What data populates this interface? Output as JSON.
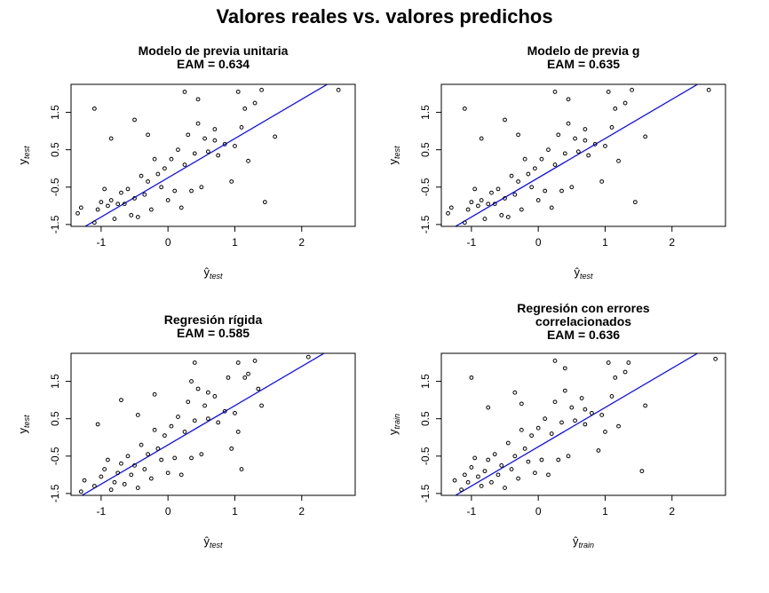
{
  "title": "Valores reales vs. valores predichos",
  "line_color": "#0000ff",
  "point_color": "#000000",
  "chart_data": [
    {
      "type": "scatter",
      "title_lines": [
        "Modelo de previa unitaria",
        "EAM =  0.634"
      ],
      "xlabel": {
        "base": "ŷ",
        "sub": "test"
      },
      "ylabel": {
        "base": "y",
        "sub": "test"
      },
      "xlim": [
        -1.45,
        2.8
      ],
      "ylim": [
        -1.55,
        2.25
      ],
      "xticks": [
        -1,
        0,
        1,
        2
      ],
      "yticks": [
        -1.5,
        -0.5,
        0.5,
        1.5
      ],
      "ytick_labels": [
        "-1.5",
        "-0.5",
        "0.5",
        "1.5"
      ],
      "line": {
        "intercept": -0.25,
        "slope": 1.05
      },
      "points": [
        [
          -1.35,
          -1.2
        ],
        [
          -1.3,
          -1.05
        ],
        [
          -1.1,
          -1.45
        ],
        [
          -1.05,
          -1.1
        ],
        [
          -1.0,
          -0.9
        ],
        [
          -0.95,
          -0.55
        ],
        [
          -0.9,
          -1.0
        ],
        [
          -0.85,
          -0.85
        ],
        [
          -0.8,
          -1.35
        ],
        [
          -0.75,
          -0.95
        ],
        [
          -0.7,
          -0.65
        ],
        [
          -0.65,
          -0.95
        ],
        [
          -0.6,
          -0.55
        ],
        [
          -0.55,
          -1.25
        ],
        [
          -0.5,
          -0.8
        ],
        [
          -0.45,
          -1.3
        ],
        [
          -0.4,
          -0.2
        ],
        [
          -0.35,
          -0.7
        ],
        [
          -0.3,
          -0.35
        ],
        [
          -0.25,
          -1.1
        ],
        [
          -0.2,
          0.25
        ],
        [
          -0.15,
          -0.15
        ],
        [
          -0.1,
          -0.5
        ],
        [
          -0.05,
          0.0
        ],
        [
          0.0,
          -0.85
        ],
        [
          0.05,
          0.25
        ],
        [
          0.1,
          -0.6
        ],
        [
          0.15,
          0.5
        ],
        [
          0.2,
          -1.05
        ],
        [
          0.25,
          0.1
        ],
        [
          0.3,
          0.9
        ],
        [
          0.35,
          -0.6
        ],
        [
          0.4,
          0.4
        ],
        [
          0.45,
          1.2
        ],
        [
          0.5,
          -0.5
        ],
        [
          0.55,
          0.8
        ],
        [
          0.6,
          0.45
        ],
        [
          0.7,
          1.05
        ],
        [
          0.75,
          0.35
        ],
        [
          0.85,
          0.65
        ],
        [
          0.95,
          -0.35
        ],
        [
          1.0,
          0.6
        ],
        [
          1.1,
          1.1
        ],
        [
          1.2,
          0.2
        ],
        [
          1.3,
          1.75
        ],
        [
          1.45,
          -0.9
        ],
        [
          1.6,
          0.85
        ],
        [
          2.55,
          2.1
        ],
        [
          -1.1,
          1.6
        ],
        [
          -0.85,
          0.8
        ],
        [
          -0.5,
          1.3
        ],
        [
          -0.3,
          0.9
        ],
        [
          0.25,
          2.05
        ],
        [
          0.45,
          1.85
        ],
        [
          0.7,
          0.75
        ],
        [
          1.05,
          2.05
        ],
        [
          1.15,
          1.6
        ],
        [
          1.4,
          2.1
        ]
      ]
    },
    {
      "type": "scatter",
      "title_lines": [
        "Modelo de previa g",
        "EAM =  0.635"
      ],
      "xlabel": {
        "base": "ŷ",
        "sub": "test"
      },
      "ylabel": {
        "base": "y",
        "sub": "test"
      },
      "xlim": [
        -1.45,
        2.8
      ],
      "ylim": [
        -1.55,
        2.25
      ],
      "xticks": [
        -1,
        0,
        1,
        2
      ],
      "yticks": [
        -1.5,
        -0.5,
        0.5,
        1.5
      ],
      "ytick_labels": [
        "-1.5",
        "-0.5",
        "0.5",
        "1.5"
      ],
      "line": {
        "intercept": -0.25,
        "slope": 1.05
      },
      "points": [
        [
          -1.35,
          -1.2
        ],
        [
          -1.3,
          -1.05
        ],
        [
          -1.1,
          -1.45
        ],
        [
          -1.05,
          -1.1
        ],
        [
          -1.0,
          -0.9
        ],
        [
          -0.95,
          -0.55
        ],
        [
          -0.9,
          -1.0
        ],
        [
          -0.85,
          -0.85
        ],
        [
          -0.8,
          -1.35
        ],
        [
          -0.75,
          -0.95
        ],
        [
          -0.7,
          -0.65
        ],
        [
          -0.65,
          -0.95
        ],
        [
          -0.6,
          -0.55
        ],
        [
          -0.55,
          -1.25
        ],
        [
          -0.5,
          -0.8
        ],
        [
          -0.45,
          -1.3
        ],
        [
          -0.4,
          -0.2
        ],
        [
          -0.35,
          -0.7
        ],
        [
          -0.3,
          -0.35
        ],
        [
          -0.25,
          -1.1
        ],
        [
          -0.2,
          0.25
        ],
        [
          -0.15,
          -0.15
        ],
        [
          -0.1,
          -0.5
        ],
        [
          -0.05,
          0.0
        ],
        [
          0.0,
          -0.85
        ],
        [
          0.05,
          0.25
        ],
        [
          0.1,
          -0.6
        ],
        [
          0.15,
          0.5
        ],
        [
          0.2,
          -1.05
        ],
        [
          0.25,
          0.1
        ],
        [
          0.3,
          0.9
        ],
        [
          0.35,
          -0.6
        ],
        [
          0.4,
          0.4
        ],
        [
          0.45,
          1.2
        ],
        [
          0.5,
          -0.5
        ],
        [
          0.55,
          0.8
        ],
        [
          0.6,
          0.45
        ],
        [
          0.7,
          1.05
        ],
        [
          0.75,
          0.35
        ],
        [
          0.85,
          0.65
        ],
        [
          0.95,
          -0.35
        ],
        [
          1.0,
          0.6
        ],
        [
          1.1,
          1.1
        ],
        [
          1.2,
          0.2
        ],
        [
          1.3,
          1.75
        ],
        [
          1.45,
          -0.9
        ],
        [
          1.6,
          0.85
        ],
        [
          2.55,
          2.1
        ],
        [
          -1.1,
          1.6
        ],
        [
          -0.85,
          0.8
        ],
        [
          -0.5,
          1.3
        ],
        [
          -0.3,
          0.9
        ],
        [
          0.25,
          2.05
        ],
        [
          0.45,
          1.85
        ],
        [
          0.7,
          0.75
        ],
        [
          1.05,
          2.05
        ],
        [
          1.15,
          1.6
        ],
        [
          1.4,
          2.1
        ]
      ]
    },
    {
      "type": "scatter",
      "title_lines": [
        "Regresión rígida",
        "EAM =  0.585"
      ],
      "xlabel": {
        "base": "ŷ",
        "sub": "test"
      },
      "ylabel": {
        "base": "y",
        "sub": "test"
      },
      "xlim": [
        -1.45,
        2.8
      ],
      "ylim": [
        -1.55,
        2.25
      ],
      "xticks": [
        -1,
        0,
        1,
        2
      ],
      "yticks": [
        -1.5,
        -0.5,
        0.5,
        1.5
      ],
      "ytick_labels": [
        "-1.5",
        "-0.5",
        "0.5",
        "1.5"
      ],
      "line": {
        "intercept": -0.2,
        "slope": 1.05
      },
      "points": [
        [
          -1.3,
          -1.45
        ],
        [
          -1.25,
          -1.15
        ],
        [
          -1.1,
          -1.3
        ],
        [
          -1.0,
          -1.05
        ],
        [
          -0.95,
          -0.85
        ],
        [
          -0.9,
          -0.6
        ],
        [
          -0.85,
          -1.4
        ],
        [
          -0.8,
          -1.2
        ],
        [
          -0.75,
          -0.95
        ],
        [
          -0.7,
          -0.7
        ],
        [
          -0.65,
          -1.25
        ],
        [
          -0.6,
          -0.5
        ],
        [
          -0.55,
          -1.0
        ],
        [
          -0.5,
          -0.75
        ],
        [
          -0.45,
          -1.35
        ],
        [
          -0.4,
          -0.2
        ],
        [
          -0.35,
          -0.85
        ],
        [
          -0.3,
          -0.45
        ],
        [
          -0.25,
          -1.1
        ],
        [
          -0.2,
          0.2
        ],
        [
          -0.15,
          -0.3
        ],
        [
          -0.1,
          -0.6
        ],
        [
          -0.05,
          0.05
        ],
        [
          0.0,
          -0.95
        ],
        [
          0.05,
          0.3
        ],
        [
          0.1,
          -0.55
        ],
        [
          0.15,
          0.55
        ],
        [
          0.2,
          -1.0
        ],
        [
          0.25,
          0.15
        ],
        [
          0.3,
          0.95
        ],
        [
          0.35,
          -0.55
        ],
        [
          0.4,
          0.45
        ],
        [
          0.45,
          1.3
        ],
        [
          0.5,
          -0.45
        ],
        [
          0.55,
          0.85
        ],
        [
          0.6,
          0.5
        ],
        [
          0.7,
          1.1
        ],
        [
          0.75,
          0.4
        ],
        [
          0.85,
          0.7
        ],
        [
          0.95,
          -0.3
        ],
        [
          1.0,
          0.65
        ],
        [
          1.05,
          0.15
        ],
        [
          1.1,
          -0.85
        ],
        [
          1.15,
          1.6
        ],
        [
          1.3,
          2.05
        ],
        [
          1.4,
          0.85
        ],
        [
          2.1,
          2.15
        ],
        [
          -1.05,
          0.35
        ],
        [
          -0.7,
          1.0
        ],
        [
          -0.45,
          0.6
        ],
        [
          -0.2,
          1.15
        ],
        [
          0.35,
          1.5
        ],
        [
          0.4,
          2.0
        ],
        [
          0.6,
          1.2
        ],
        [
          0.9,
          1.6
        ],
        [
          1.05,
          2.0
        ],
        [
          1.35,
          1.3
        ],
        [
          1.2,
          1.7
        ]
      ]
    },
    {
      "type": "scatter",
      "title_lines": [
        "Regresión con errores",
        "correlacionados",
        "EAM =  0.636"
      ],
      "xlabel": {
        "base": "ŷ",
        "sub": "train"
      },
      "ylabel": {
        "base": "y",
        "sub": "train"
      },
      "xlim": [
        -1.45,
        2.8
      ],
      "ylim": [
        -1.55,
        2.25
      ],
      "xticks": [
        -1,
        0,
        1,
        2
      ],
      "yticks": [
        -1.5,
        -0.5,
        0.5,
        1.5
      ],
      "ytick_labels": [
        "-1.5",
        "-0.5",
        "0.5",
        "1.5"
      ],
      "line": {
        "intercept": -0.25,
        "slope": 1.05
      },
      "points": [
        [
          -1.25,
          -1.15
        ],
        [
          -1.15,
          -1.4
        ],
        [
          -1.1,
          -1.0
        ],
        [
          -1.05,
          -1.2
        ],
        [
          -1.0,
          -0.8
        ],
        [
          -0.95,
          -0.55
        ],
        [
          -0.9,
          -1.05
        ],
        [
          -0.85,
          -1.3
        ],
        [
          -0.8,
          -0.9
        ],
        [
          -0.75,
          -0.6
        ],
        [
          -0.7,
          -1.2
        ],
        [
          -0.65,
          -0.45
        ],
        [
          -0.6,
          -1.0
        ],
        [
          -0.55,
          -0.75
        ],
        [
          -0.5,
          -1.35
        ],
        [
          -0.45,
          -0.15
        ],
        [
          -0.4,
          -0.85
        ],
        [
          -0.35,
          -0.5
        ],
        [
          -0.3,
          -1.1
        ],
        [
          -0.25,
          0.2
        ],
        [
          -0.2,
          -0.3
        ],
        [
          -0.15,
          -0.65
        ],
        [
          -0.1,
          0.05
        ],
        [
          -0.05,
          -0.95
        ],
        [
          0.0,
          0.25
        ],
        [
          0.05,
          -0.6
        ],
        [
          0.1,
          0.5
        ],
        [
          0.15,
          -1.0
        ],
        [
          0.2,
          0.1
        ],
        [
          0.25,
          0.95
        ],
        [
          0.3,
          -0.6
        ],
        [
          0.35,
          0.4
        ],
        [
          0.4,
          1.25
        ],
        [
          0.45,
          -0.5
        ],
        [
          0.5,
          0.8
        ],
        [
          0.55,
          0.45
        ],
        [
          0.65,
          1.05
        ],
        [
          0.7,
          0.35
        ],
        [
          0.8,
          0.65
        ],
        [
          0.9,
          -0.35
        ],
        [
          0.95,
          0.6
        ],
        [
          1.0,
          0.15
        ],
        [
          1.1,
          1.1
        ],
        [
          1.2,
          0.3
        ],
        [
          1.3,
          1.75
        ],
        [
          1.55,
          -0.9
        ],
        [
          1.6,
          0.85
        ],
        [
          2.65,
          2.1
        ],
        [
          -1.0,
          1.6
        ],
        [
          -0.75,
          0.8
        ],
        [
          -0.35,
          1.2
        ],
        [
          -0.25,
          0.9
        ],
        [
          0.25,
          2.05
        ],
        [
          0.4,
          1.85
        ],
        [
          0.7,
          0.75
        ],
        [
          1.05,
          2.0
        ],
        [
          1.15,
          1.6
        ],
        [
          1.35,
          2.0
        ]
      ]
    }
  ]
}
